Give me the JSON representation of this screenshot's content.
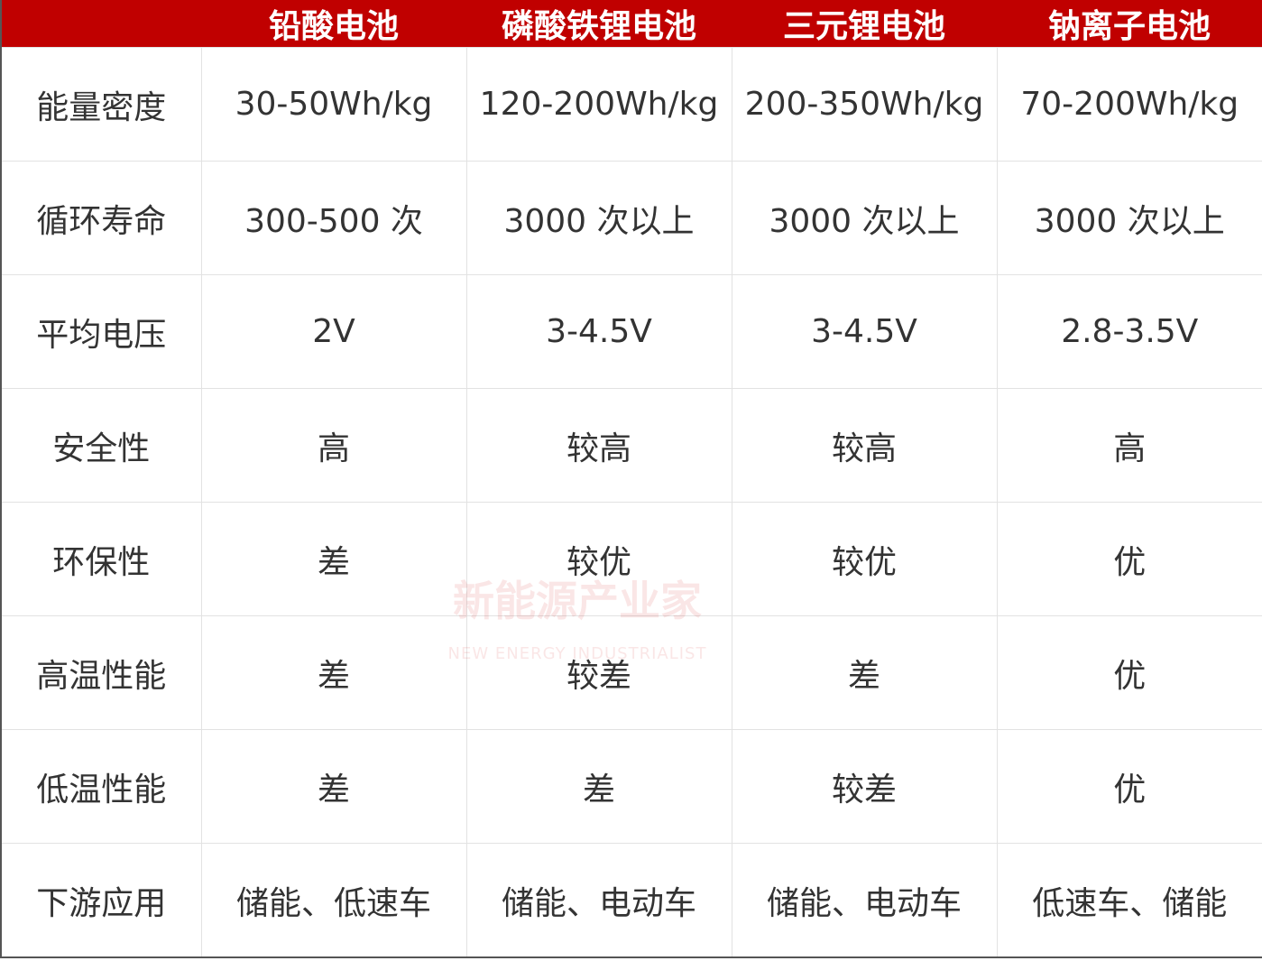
{
  "table": {
    "header": [
      "铅酸电池",
      "磷酸铁锂电池",
      "三元锂电池",
      "钠离子电池"
    ],
    "rows": [
      [
        "能量密度",
        "30-50Wh/kg",
        "120-200Wh/kg",
        "200-350Wh/kg",
        "70-200Wh/kg"
      ],
      [
        "循环寿命",
        "300-500 次",
        "3000 次以上",
        "3000 次以上",
        "3000 次以上"
      ],
      [
        "平均电压",
        "2V",
        "3-4.5V",
        "3-4.5V",
        "2.8-3.5V"
      ],
      [
        "安全性",
        "高",
        "较高",
        "较高",
        "高"
      ],
      [
        "环保性",
        "差",
        "较优",
        "较优",
        "优"
      ],
      [
        "高温性能",
        "差",
        "较差",
        "差",
        "优"
      ],
      [
        "低温性能",
        "差",
        "差",
        "较差",
        "优"
      ],
      [
        "下游应用",
        "储能、低速车",
        "储能、电动车",
        "储能、电动车",
        "低速车、储能"
      ]
    ]
  },
  "watermark": {
    "title": "新能源产业家",
    "subtitle": "NEW ENERGY INDUSTRIALIST"
  }
}
